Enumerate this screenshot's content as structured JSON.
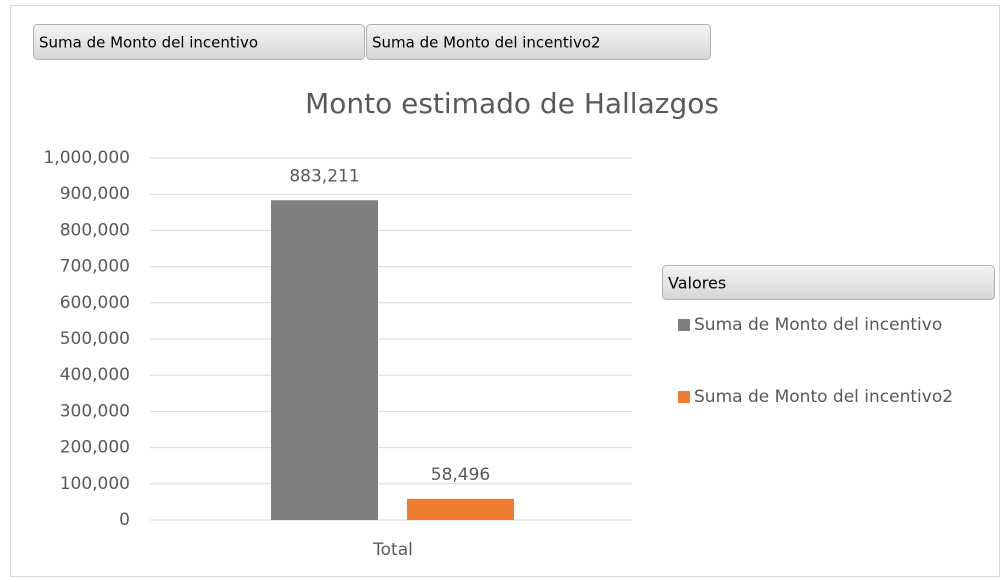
{
  "chart_data": {
    "type": "bar",
    "title": "Monto estimado de Hallazgos",
    "categories": [
      "Total"
    ],
    "series": [
      {
        "name": "Suma de Monto del incentivo",
        "color": "#7f7f7f",
        "values": [
          883211
        ],
        "value_labels": [
          "883,211"
        ]
      },
      {
        "name": "Suma de Monto del incentivo2",
        "color": "#ed7d31",
        "values": [
          58496
        ],
        "value_labels": [
          "58,496"
        ]
      }
    ],
    "legend_title": "Valores",
    "legend": "right",
    "grid": true,
    "ylim": [
      0,
      1000000
    ],
    "yticks": [
      0,
      {
        "value": 100000,
        "label": "100,000"
      },
      {
        "value": 200000,
        "label": "200,000"
      },
      {
        "value": 300000,
        "label": "300,000"
      },
      {
        "value": 400000,
        "label": "400,000"
      },
      {
        "value": 500000,
        "label": "500,000"
      },
      {
        "value": 600000,
        "label": "600,000"
      },
      {
        "value": 700000,
        "label": "700,000"
      },
      {
        "value": 800000,
        "label": "800,000"
      },
      {
        "value": 900000,
        "label": "900,000"
      },
      {
        "value": 1000000,
        "label": "1,000,000"
      }
    ]
  }
}
